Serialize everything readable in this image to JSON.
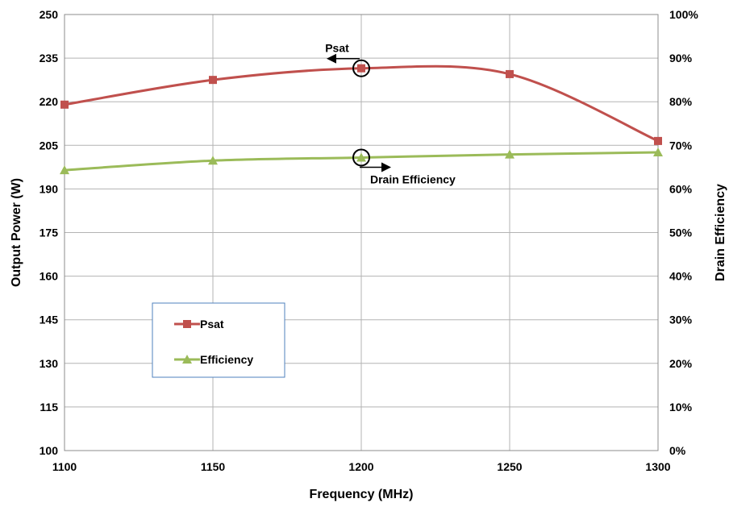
{
  "chart_data": {
    "type": "line",
    "x": [
      1100,
      1150,
      1200,
      1250,
      1300
    ],
    "xlabel": "Frequency (MHz)",
    "ylabel": "Output Power (W)",
    "y2label": "Drain Efficiency",
    "xlim": [
      1100,
      1300
    ],
    "ylim": [
      100,
      250
    ],
    "y2lim": [
      0,
      100
    ],
    "x_ticks": [
      "1100",
      "1150",
      "1200",
      "1250",
      "1300"
    ],
    "y_ticks": [
      "100",
      "115",
      "130",
      "145",
      "160",
      "175",
      "190",
      "205",
      "220",
      "235",
      "250"
    ],
    "y2_ticks": [
      "0%",
      "10%",
      "20%",
      "30%",
      "40%",
      "50%",
      "60%",
      "70%",
      "80%",
      "90%",
      "100%"
    ],
    "grid": true,
    "smooth": true,
    "legend_position": "bottom-left",
    "series": [
      {
        "name": "Psat",
        "axis": "left",
        "marker": "square",
        "color": "#c0504d",
        "values": [
          219,
          227.5,
          231.5,
          229.5,
          206.5
        ]
      },
      {
        "name": "Efficiency",
        "axis": "right",
        "marker": "triangle",
        "color": "#9bbb59",
        "values": [
          64.3,
          66.5,
          67.2,
          67.9,
          68.4
        ]
      }
    ],
    "annotations": [
      {
        "text": "Psat",
        "target_series": "Psat",
        "x": 1200,
        "arrow": "left"
      },
      {
        "text": "Drain Efficiency",
        "target_series": "Efficiency",
        "x": 1200,
        "arrow": "right"
      }
    ]
  }
}
